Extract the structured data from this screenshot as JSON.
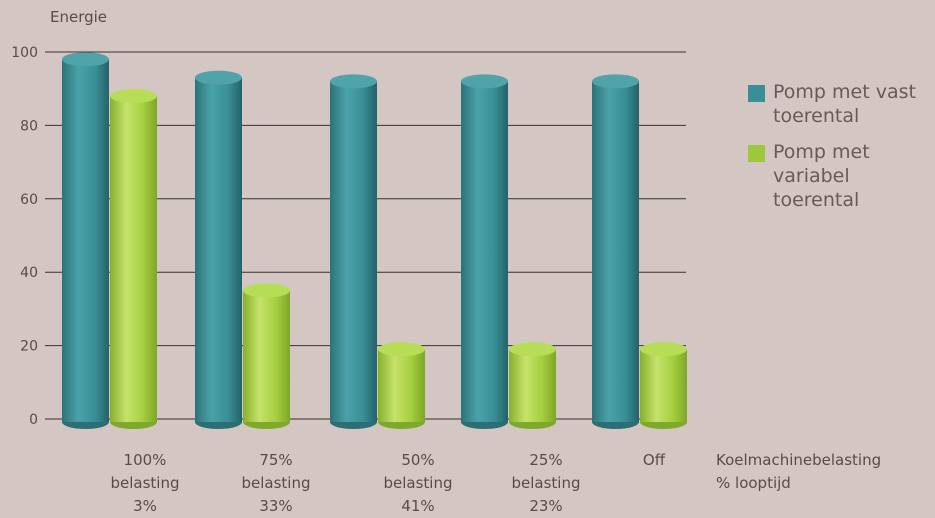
{
  "chart_data": {
    "type": "bar",
    "ylabel": "Energie",
    "xlabel": [
      "Koelmachinebelasting",
      "% looptijd"
    ],
    "ylim": [
      0,
      100
    ],
    "yticks": [
      0,
      20,
      40,
      60,
      80,
      100
    ],
    "categories": [
      {
        "name": "100%",
        "sub": "belasting",
        "runtime": "3%"
      },
      {
        "name": "75%",
        "sub": "belasting",
        "runtime": "33%"
      },
      {
        "name": "50%",
        "sub": "belasting",
        "runtime": "41%"
      },
      {
        "name": "25%",
        "sub": "belasting",
        "runtime": "23%"
      },
      {
        "name": "Off",
        "sub": "",
        "runtime": ""
      }
    ],
    "series": [
      {
        "name": "Pomp met vast toerental",
        "color": "#3a8f96",
        "values": [
          98,
          93,
          92,
          92,
          92
        ]
      },
      {
        "name": "Pomp met variabel toerental",
        "color": "#9cc83a",
        "values": [
          88,
          35,
          19,
          19,
          19
        ]
      }
    ],
    "grid": true,
    "legend_position": "right"
  }
}
